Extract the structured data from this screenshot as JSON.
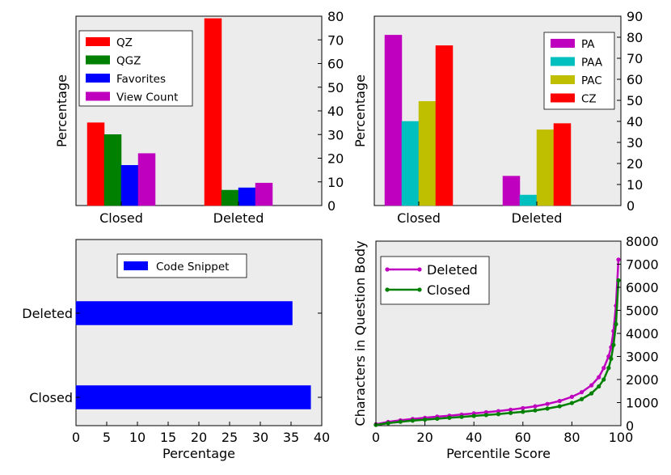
{
  "chart_data": [
    {
      "type": "bar",
      "categories": [
        "Closed",
        "Deleted"
      ],
      "series": [
        {
          "name": "QZ",
          "values": [
            35,
            79
          ]
        },
        {
          "name": "QGZ",
          "values": [
            30,
            6.5
          ]
        },
        {
          "name": "Favorites",
          "values": [
            17,
            7.5
          ]
        },
        {
          "name": "View Count",
          "values": [
            22,
            9.5
          ]
        }
      ],
      "colors": [
        "#ff0000",
        "#008000",
        "#0000ff",
        "#bf00bf"
      ],
      "ylabel": "Percentage",
      "ylim": [
        0,
        80
      ],
      "yticks": [
        "0",
        "10",
        "20",
        "30",
        "40",
        "50",
        "60",
        "70",
        "80"
      ],
      "y_axis_side": "right",
      "grid": false,
      "legend_position": "upper-left"
    },
    {
      "type": "bar",
      "categories": [
        "Closed",
        "Deleted"
      ],
      "series": [
        {
          "name": "PA",
          "values": [
            81,
            14
          ]
        },
        {
          "name": "PAA",
          "values": [
            40,
            5
          ]
        },
        {
          "name": "PAC",
          "values": [
            49.5,
            36
          ]
        },
        {
          "name": "CZ",
          "values": [
            76,
            39
          ]
        }
      ],
      "colors": [
        "#bf00bf",
        "#00bfbf",
        "#bfbf00",
        "#ff0000"
      ],
      "ylabel": "Percentage",
      "ylim": [
        0,
        90
      ],
      "yticks": [
        "0",
        "10",
        "20",
        "30",
        "40",
        "50",
        "60",
        "70",
        "80",
        "90"
      ],
      "y_axis_side": "right",
      "grid": false,
      "legend_position": "upper-right"
    },
    {
      "type": "barh",
      "categories": [
        "Closed",
        "Deleted"
      ],
      "series": [
        {
          "name": "Code Snippet",
          "values": [
            38.2,
            35.2
          ]
        }
      ],
      "colors": [
        "#0000ff"
      ],
      "xlabel": "Percentage",
      "xlim": [
        0,
        40
      ],
      "xticks": [
        "0",
        "5",
        "10",
        "15",
        "20",
        "25",
        "30",
        "35",
        "40"
      ],
      "grid": false,
      "legend_position": "upper-center"
    },
    {
      "type": "line",
      "xlabel": "Percentile Score",
      "ylabel": "Characters in Question Body",
      "xlim": [
        0,
        100
      ],
      "ylim": [
        0,
        8000
      ],
      "xticks": [
        "0",
        "20",
        "40",
        "60",
        "80",
        "100"
      ],
      "yticks": [
        "0",
        "1000",
        "2000",
        "3000",
        "4000",
        "5000",
        "6000",
        "7000",
        "8000"
      ],
      "y_axis_side": "right",
      "grid": false,
      "legend_position": "upper-left",
      "series": [
        {
          "name": "Deleted",
          "color": "#bf00bf",
          "points": [
            [
              0,
              60
            ],
            [
              5,
              160
            ],
            [
              10,
              230
            ],
            [
              15,
              290
            ],
            [
              20,
              340
            ],
            [
              25,
              390
            ],
            [
              30,
              430
            ],
            [
              35,
              480
            ],
            [
              40,
              530
            ],
            [
              45,
              580
            ],
            [
              50,
              630
            ],
            [
              55,
              690
            ],
            [
              60,
              760
            ],
            [
              65,
              840
            ],
            [
              70,
              940
            ],
            [
              75,
              1070
            ],
            [
              80,
              1250
            ],
            [
              84,
              1450
            ],
            [
              88,
              1750
            ],
            [
              91,
              2100
            ],
            [
              93,
              2500
            ],
            [
              95,
              3000
            ],
            [
              96,
              3400
            ],
            [
              97,
              4100
            ],
            [
              98,
              5200
            ],
            [
              99,
              7200
            ]
          ]
        },
        {
          "name": "Closed",
          "color": "#008000",
          "points": [
            [
              0,
              30
            ],
            [
              5,
              110
            ],
            [
              10,
              170
            ],
            [
              15,
              220
            ],
            [
              20,
              260
            ],
            [
              25,
              300
            ],
            [
              30,
              340
            ],
            [
              35,
              380
            ],
            [
              40,
              420
            ],
            [
              45,
              460
            ],
            [
              50,
              500
            ],
            [
              55,
              550
            ],
            [
              60,
              600
            ],
            [
              65,
              660
            ],
            [
              70,
              740
            ],
            [
              75,
              840
            ],
            [
              80,
              980
            ],
            [
              84,
              1150
            ],
            [
              88,
              1400
            ],
            [
              91,
              1700
            ],
            [
              93,
              2000
            ],
            [
              95,
              2500
            ],
            [
              96,
              2900
            ],
            [
              97,
              3500
            ],
            [
              98,
              4400
            ],
            [
              99,
              6300
            ]
          ]
        }
      ]
    }
  ]
}
